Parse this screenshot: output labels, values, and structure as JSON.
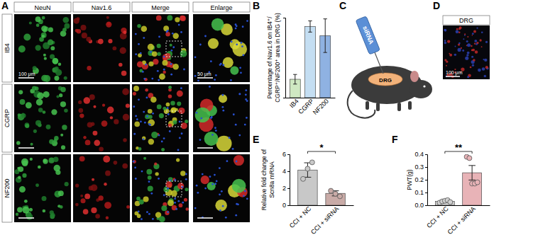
{
  "figure": {
    "panel_labels": [
      "A",
      "B",
      "C",
      "D",
      "E",
      "F"
    ],
    "panel_a": {
      "columns": [
        "NeuN",
        "Nav1.6",
        "Merge",
        "Enlarge"
      ],
      "rows": [
        "IB4",
        "CGRP",
        "NF200"
      ],
      "scale_bars": [
        "100 μm",
        "50 μm"
      ]
    },
    "panel_c": {
      "injection": "siRNA",
      "target": "DRG"
    },
    "panel_d": {
      "title": "DRG",
      "scale_bar": "100 μm"
    }
  },
  "chart_data": [
    {
      "type": "bar",
      "y_label": [
        "Percentage of Nav1.6 on IB4⁺/",
        "CGRP⁺/NF200⁺ area in DRG (%)"
      ],
      "categories": [
        "IB4",
        "CGRP",
        "NF200"
      ],
      "values": [
        4.6,
        17.8,
        15.5
      ],
      "errors": [
        1.2,
        1.4,
        4.2
      ],
      "colors": [
        "#cfe8c2",
        "#c4def2",
        "#8fb2e2"
      ],
      "ylim": [
        0,
        20
      ],
      "tick_labels": "x"
    },
    {
      "type": "bar",
      "y_label": [
        "Relative fold change of",
        "Scn8a mRNA"
      ],
      "categories": [
        "CCI + NC",
        "CCI + siRNA"
      ],
      "values": [
        4.15,
        1.4
      ],
      "errors": [
        0.85,
        0.3
      ],
      "points": [
        [
          3.1,
          4.3,
          5.05
        ],
        [
          1.7,
          1.35,
          1.05
        ]
      ],
      "marker": "circle",
      "colors": [
        "#c8c8c8",
        "#c9aba7"
      ],
      "ylim": [
        0,
        6
      ],
      "yticks": [
        0,
        2,
        4,
        6
      ],
      "significance": "*"
    },
    {
      "type": "bar",
      "y_label": [
        "PWT(g)"
      ],
      "categories": [
        "CCI + NC",
        "CCI + siRNA"
      ],
      "values": [
        0.03,
        0.255
      ],
      "errors": [
        0.006,
        0.057
      ],
      "points": [
        [
          0.02,
          0.03,
          0.035,
          0.04,
          0.025
        ],
        [
          0.38,
          0.37,
          0.17,
          0.17,
          0.18
        ]
      ],
      "marker": "circle",
      "colors": [
        "#d0d0d0",
        "#e8b3b7"
      ],
      "ylim": [
        0,
        0.4
      ],
      "yticks": [
        {
          "value": 0,
          "label": "0.0"
        },
        0.1,
        0.2,
        0.3,
        0.4
      ],
      "significance": "**"
    }
  ]
}
